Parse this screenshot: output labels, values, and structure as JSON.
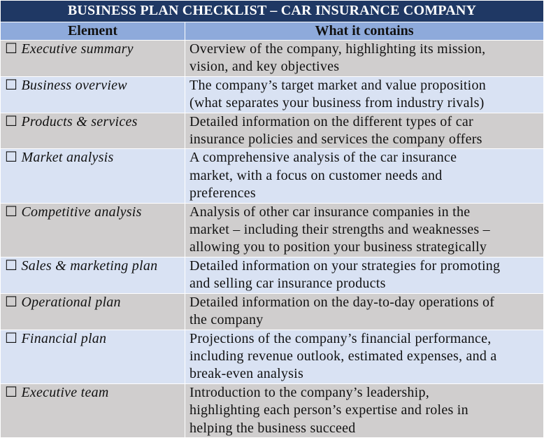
{
  "title": "BUSINESS PLAN CHECKLIST – CAR INSURANCE COMPANY",
  "columns": [
    "Element",
    "What it contains"
  ],
  "checkbox_glyph": "☐",
  "colors": {
    "title_bg": "#1f3864",
    "header_bg": "#8eaadb",
    "row_gray": "#d0cece",
    "row_blue": "#d9e2f3"
  },
  "rows": [
    {
      "element": "Executive summary",
      "lines": [
        "Overview of the company, highlighting its mission,",
        "vision, and key objectives"
      ]
    },
    {
      "element": "Business overview",
      "lines": [
        "The company’s target market and value proposition",
        "(what separates your business from industry rivals)"
      ]
    },
    {
      "element": "Products & services",
      "lines": [
        "Detailed information on the different types of car",
        "insurance policies and services the company offers"
      ]
    },
    {
      "element": "Market analysis",
      "lines": [
        "A comprehensive analysis of the car insurance",
        "market, with a focus on customer needs and",
        "preferences"
      ]
    },
    {
      "element": "Competitive analysis",
      "lines": [
        "Analysis of other car insurance companies in the",
        "market – including their strengths and weaknesses –",
        "allowing you to position your business strategically"
      ]
    },
    {
      "element": "Sales & marketing plan",
      "lines": [
        "Detailed information on your strategies for promoting",
        "and selling car insurance products"
      ]
    },
    {
      "element": "Operational plan",
      "lines": [
        "Detailed information on the day-to-day operations of",
        "the company"
      ]
    },
    {
      "element": "Financial plan",
      "lines": [
        "Projections of the company’s financial performance,",
        "including revenue outlook, estimated expenses, and a",
        "break-even analysis"
      ]
    },
    {
      "element": "Executive team",
      "lines": [
        "Introduction to the company’s leadership,",
        "highlighting each person’s expertise and roles in",
        "helping the business succeed"
      ]
    }
  ]
}
